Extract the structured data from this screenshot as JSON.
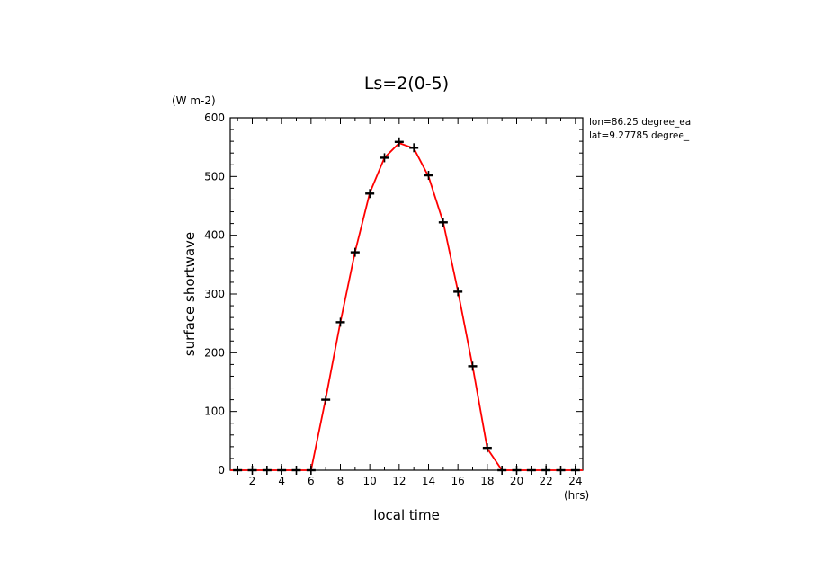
{
  "chart_data": {
    "type": "line",
    "title": "Ls=2(0-5)",
    "xlabel": "local time",
    "ylabel": "surface shortwave",
    "y_unit": "(W m-2)",
    "x_unit": "(hrs)",
    "xlim": [
      0.5,
      24.5
    ],
    "ylim": [
      0,
      600
    ],
    "x_ticks": [
      2,
      4,
      6,
      8,
      10,
      12,
      14,
      16,
      18,
      20,
      22,
      24
    ],
    "y_ticks": [
      0,
      100,
      200,
      300,
      400,
      500,
      600
    ],
    "annotations": [
      "lon=86.25 degree_ea",
      "lat=9.27785 degree_"
    ],
    "colors": {
      "line": "#ff0000",
      "markers": "#000000",
      "axes": "#000000"
    },
    "series": [
      {
        "style": "line",
        "x": [
          0.5,
          1,
          2,
          3,
          4,
          5,
          6,
          7,
          8,
          9,
          10,
          11,
          12,
          13,
          14,
          15,
          16,
          17,
          18,
          19,
          20,
          21,
          22,
          23,
          24,
          24.5
        ],
        "values": [
          0,
          0,
          0,
          0,
          0,
          0,
          0,
          122,
          252,
          372,
          472,
          532,
          557,
          548,
          500,
          422,
          305,
          177,
          37,
          0,
          0,
          0,
          0,
          0,
          0,
          0
        ]
      },
      {
        "style": "markers",
        "x": [
          1,
          2,
          3,
          4,
          5,
          6,
          7,
          8,
          9,
          10,
          11,
          12,
          13,
          14,
          15,
          16,
          17,
          18,
          19,
          20,
          21,
          22,
          23,
          24
        ],
        "values": [
          0,
          0,
          0,
          0,
          0,
          0,
          120,
          252,
          371,
          471,
          532,
          559,
          549,
          502,
          422,
          304,
          177,
          38,
          0,
          0,
          0,
          0,
          0,
          0
        ]
      }
    ]
  }
}
